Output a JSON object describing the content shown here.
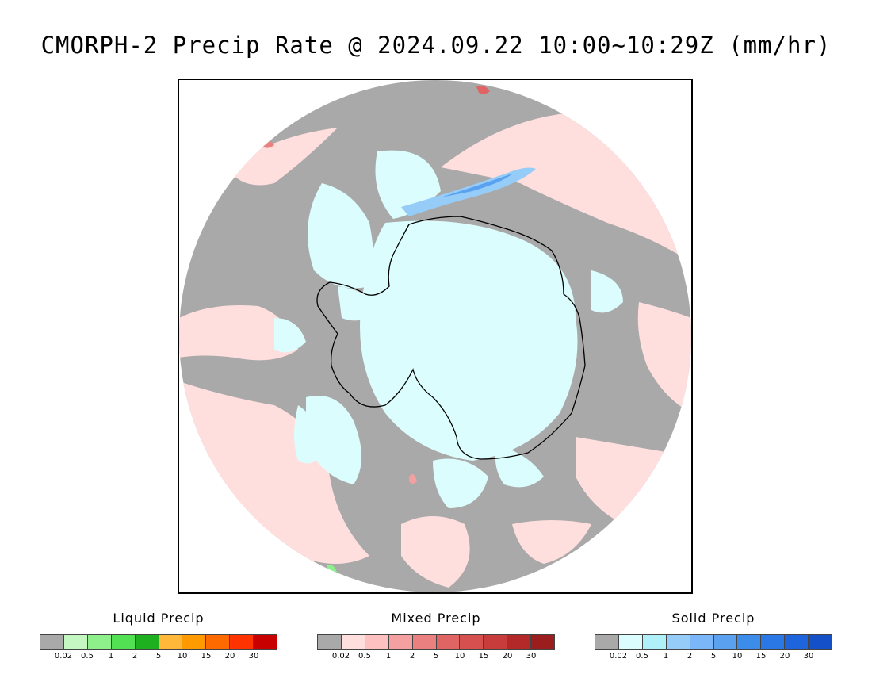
{
  "title": "CMORPH-2 Precip Rate @ 2024.09.22 10:00~10:29Z (mm/hr)",
  "map": {
    "projection": "south-polar-stereographic",
    "colors": {
      "no_precip": "#a9a9a9",
      "light_mixed": "#ffdede",
      "light_solid": "#dcfdfd",
      "coastline": "#000000",
      "outside": "#ffffff"
    }
  },
  "legends": [
    {
      "title": "Liquid Precip",
      "colors": [
        "#a9a9a9",
        "#c4f7c1",
        "#8ef08a",
        "#52e152",
        "#1fb01f",
        "#ffb83a",
        "#ff9b00",
        "#ff6a00",
        "#ff3300",
        "#c80000"
      ],
      "ticks": [
        "0.02",
        "0.5",
        "1",
        "2",
        "5",
        "10",
        "15",
        "20",
        "30"
      ]
    },
    {
      "title": "Mixed Precip",
      "colors": [
        "#a9a9a9",
        "#ffdede",
        "#ffc0c0",
        "#f5a0a0",
        "#ea8080",
        "#e06464",
        "#d65050",
        "#c83c3c",
        "#b32828",
        "#9b1e1e"
      ],
      "ticks": [
        "0.02",
        "0.5",
        "1",
        "2",
        "5",
        "10",
        "15",
        "20",
        "30"
      ]
    },
    {
      "title": "Solid Precip",
      "colors": [
        "#a9a9a9",
        "#dcfdfd",
        "#b0f0f8",
        "#96ccf8",
        "#7ab6f8",
        "#5aa2f0",
        "#3c8cea",
        "#2a78e6",
        "#1e64dc",
        "#1450c8"
      ],
      "ticks": [
        "0.02",
        "0.5",
        "1",
        "2",
        "5",
        "10",
        "15",
        "20",
        "30"
      ]
    }
  ]
}
